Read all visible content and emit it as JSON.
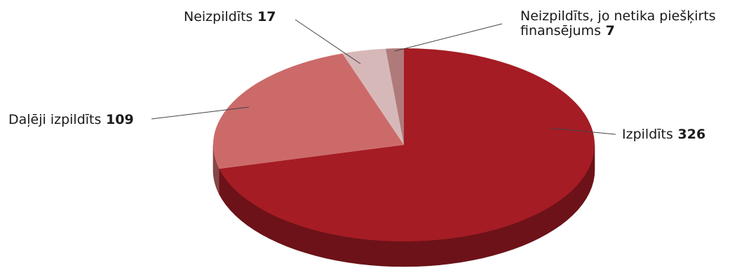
{
  "chart_data": {
    "type": "pie",
    "title": "",
    "style": "3d",
    "categories": [
      "Izpildīts",
      "Daļēji izpildīts",
      "Neizpildīts",
      "Neizpildīts, jo netika piešķirts finansējums"
    ],
    "values": [
      326,
      109,
      17,
      7
    ],
    "colors": [
      "#a51c24",
      "#cc6a6a",
      "#d7b8b8",
      "#b07a7a"
    ],
    "labels": [
      {
        "lines": [
          "Izpildīts"
        ],
        "value": "326"
      },
      {
        "lines": [
          "Daļēji izpildīts"
        ],
        "value": "109"
      },
      {
        "lines": [
          "Neizpildīts"
        ],
        "value": "17"
      },
      {
        "lines": [
          "Neizpildīts, jo netika piešķirts",
          "finansējums"
        ],
        "value": "7"
      }
    ]
  }
}
